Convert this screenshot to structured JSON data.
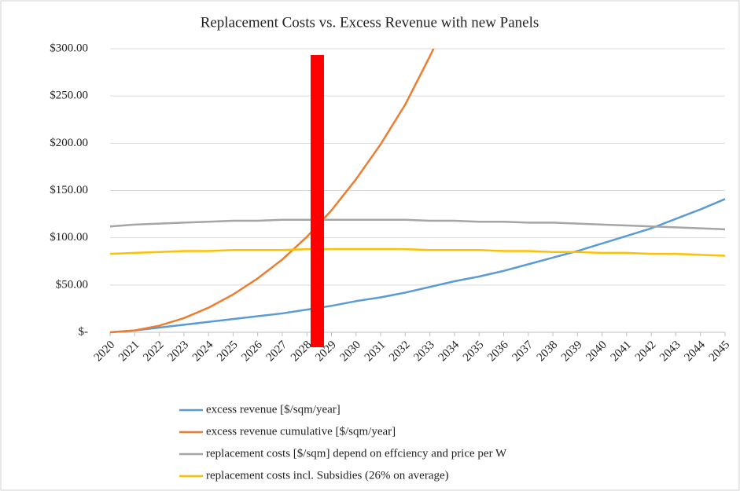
{
  "chart_data": {
    "type": "line",
    "title": "Replacement Costs vs. Excess Revenue with new Panels",
    "categories": [
      "2020",
      "2021",
      "2022",
      "2023",
      "2024",
      "2025",
      "2026",
      "2027",
      "2028",
      "2029",
      "2030",
      "2031",
      "2032",
      "2033",
      "2034",
      "2035",
      "2036",
      "2037",
      "2038",
      "2039",
      "2040",
      "2041",
      "2042",
      "2043",
      "2044",
      "2045"
    ],
    "series": [
      {
        "name": "excess revenue [$/sqm/year]",
        "color": "#5b9bd5",
        "values": [
          0,
          2,
          5,
          8,
          11,
          14,
          17,
          20,
          24,
          28,
          33,
          37,
          42,
          48,
          54,
          59,
          65,
          72,
          79,
          86,
          94,
          102,
          110,
          120,
          130,
          141
        ]
      },
      {
        "name": "excess revenue cumulative [$/sqm/year]",
        "color": "#ed7d31",
        "values": [
          0,
          2,
          7,
          15,
          26,
          40,
          57,
          77,
          101,
          129,
          162,
          199,
          241,
          292,
          346,
          null,
          null,
          null,
          null,
          null,
          null,
          null,
          null,
          null,
          null,
          null
        ]
      },
      {
        "name": "replacement costs [$/sqm] depend on effciency and price per W",
        "color": "#a5a5a5",
        "values": [
          112,
          114,
          115,
          116,
          117,
          118,
          118,
          119,
          119,
          119,
          119,
          119,
          119,
          118,
          118,
          117,
          117,
          116,
          116,
          115,
          114,
          113,
          112,
          111,
          110,
          109
        ]
      },
      {
        "name": "replacement costs incl. Subsidies (26% on average)",
        "color": "#ffc000",
        "values": [
          83,
          84,
          85,
          86,
          86,
          87,
          87,
          87,
          88,
          88,
          88,
          88,
          88,
          87,
          87,
          87,
          86,
          86,
          85,
          85,
          84,
          84,
          83,
          83,
          82,
          81
        ]
      }
    ],
    "ylim": [
      0,
      300
    ],
    "yticks": [
      {
        "value": 0,
        "label": "$-"
      },
      {
        "value": 50,
        "label": "$50.00"
      },
      {
        "value": 100,
        "label": "$100.00"
      },
      {
        "value": 150,
        "label": "$150.00"
      },
      {
        "value": 200,
        "label": "$200.00"
      },
      {
        "value": 250,
        "label": "$250.00"
      },
      {
        "value": 300,
        "label": "$300.00"
      }
    ],
    "grid": true
  }
}
